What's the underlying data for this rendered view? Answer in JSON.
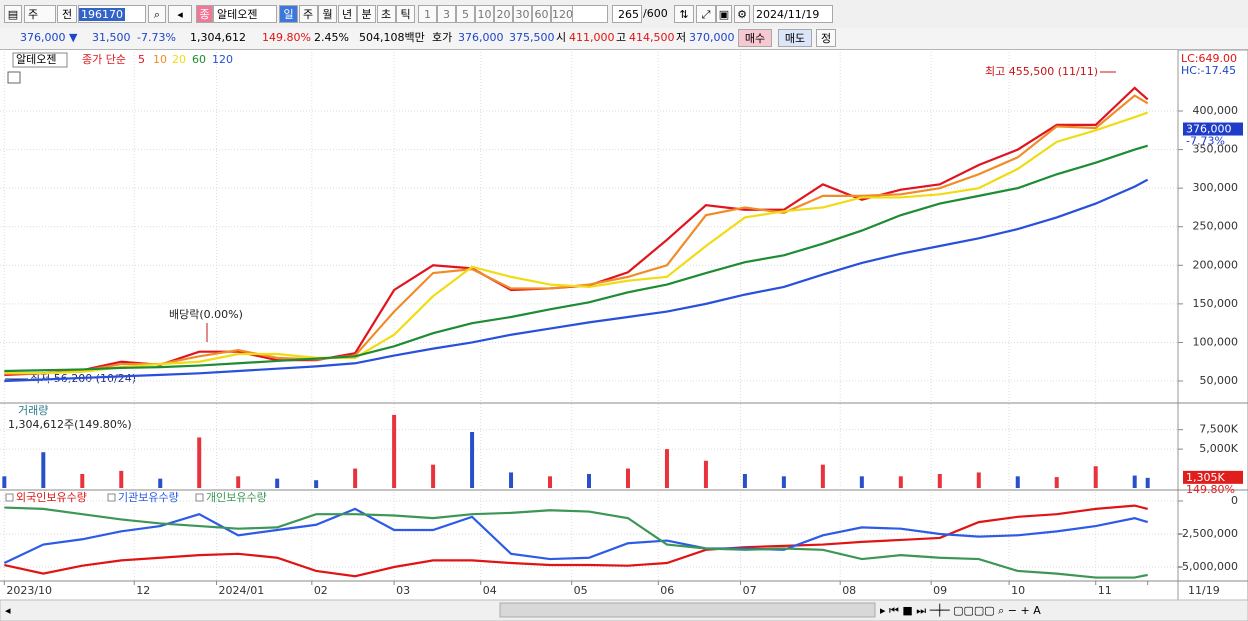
{
  "toolbar": {
    "market": "주",
    "range": "전",
    "code": "196170",
    "badge": "종",
    "name": "알테오젠",
    "periods": [
      "일",
      "주",
      "월",
      "년",
      "분",
      "초",
      "틱"
    ],
    "intervals": [
      "1",
      "3",
      "5",
      "10",
      "20",
      "30",
      "60",
      "120"
    ],
    "count": "265",
    "max": "/600",
    "date": "2024/11/19"
  },
  "quote": {
    "price": "376,000 ▼",
    "change": "31,500",
    "pct": "-7.73%",
    "volume": "1,304,612",
    "vol_ratio": "149.80%",
    "turnover": "2.45%",
    "amount": "504,108백만",
    "hoga_label": "호가",
    "ask": "376,000",
    "bid": "375,500",
    "open_label": "시",
    "open": "411,000",
    "high_label": "고",
    "high": "414,500",
    "low_label": "저",
    "low": "370,000",
    "buy": "매수",
    "sell": "매도",
    "flat": "정"
  },
  "chart_data": {
    "type": "stock",
    "x": [
      0,
      9,
      18,
      27,
      36,
      45,
      54,
      63,
      72,
      81,
      90,
      99,
      108,
      117,
      126,
      135,
      144,
      153,
      162,
      171,
      180,
      189,
      198,
      207,
      216,
      225,
      234,
      243,
      252,
      261,
      264
    ],
    "xlim": [
      -1,
      271
    ],
    "xticks": [
      {
        "value": 0,
        "label": "2023/10"
      },
      {
        "value": 30,
        "label": "12"
      },
      {
        "value": 49,
        "label": "2024/01"
      },
      {
        "value": 71,
        "label": "02"
      },
      {
        "value": 90,
        "label": "03"
      },
      {
        "value": 110,
        "label": "04"
      },
      {
        "value": 131,
        "label": "05"
      },
      {
        "value": 151,
        "label": "06"
      },
      {
        "value": 170,
        "label": "07"
      },
      {
        "value": 193,
        "label": "08"
      },
      {
        "value": 214,
        "label": "09"
      },
      {
        "value": 232,
        "label": "10"
      },
      {
        "value": 252,
        "label": "11"
      },
      {
        "value": 264,
        "label": "11/19"
      }
    ],
    "grid": true,
    "panels": [
      {
        "type": "line",
        "title": "알테오젠",
        "legend_prefix": "종가 단순",
        "lc": "LC:649.00",
        "hc": "HC:-17.45",
        "ylim": [
          22800,
          476500
        ],
        "yticks": [
          {
            "value": 50000,
            "label": "50,000"
          },
          {
            "value": 100000,
            "label": "100,000"
          },
          {
            "value": 150000,
            "label": "150,000"
          },
          {
            "value": 200000,
            "label": "200,000"
          },
          {
            "value": 250000,
            "label": "250,000"
          },
          {
            "value": 300000,
            "label": "300,000"
          },
          {
            "value": 350000,
            "label": "350,000"
          },
          {
            "value": 400000,
            "label": "400,000"
          }
        ],
        "last": {
          "value": 376000,
          "label": "376,000"
        },
        "last_change": "-7.73%",
        "annotations": {
          "high": "최고 455,500 (11/11)",
          "dividend": "배당락(0.00%)",
          "low": "최저 56,200 (10/24)"
        },
        "series": [
          {
            "name": "5",
            "color": "#e0141e",
            "values": [
              58000,
              60000,
              64000,
              75000,
              71000,
              88000,
              88000,
              77000,
              77000,
              86000,
              168000,
              200000,
              196000,
              168000,
              170000,
              174000,
              191000,
              233000,
              278000,
              272000,
              272000,
              305000,
              285000,
              298000,
              305000,
              330000,
              350000,
              382000,
              382000,
              430000,
              415000
            ]
          },
          {
            "name": "10",
            "color": "#f08c28",
            "values": [
              60000,
              60000,
              63000,
              72000,
              72000,
              82000,
              90000,
              80000,
              78000,
              83000,
              140000,
              190000,
              195000,
              170000,
              170000,
              175000,
              185000,
              200000,
              265000,
              275000,
              268000,
              290000,
              290000,
              292000,
              300000,
              318000,
              340000,
              380000,
              378000,
              420000,
              410000
            ]
          },
          {
            "name": "20",
            "color": "#f0dc14",
            "values": [
              60000,
              60000,
              62000,
              68000,
              72000,
              75000,
              85000,
              85000,
              80000,
              80000,
              110000,
              160000,
              198000,
              185000,
              175000,
              172000,
              180000,
              185000,
              225000,
              262000,
              270000,
              275000,
              288000,
              288000,
              292000,
              300000,
              325000,
              360000,
              375000,
              392000,
              398000
            ]
          },
          {
            "name": "60",
            "color": "#1e8c32",
            "values": [
              63000,
              64000,
              65000,
              67000,
              68000,
              70000,
              73000,
              76000,
              79000,
              82000,
              95000,
              112000,
              125000,
              133000,
              143000,
              152000,
              165000,
              175000,
              190000,
              204000,
              213000,
              228000,
              245000,
              265000,
              280000,
              290000,
              300000,
              318000,
              333000,
              350000,
              355000
            ]
          },
          {
            "name": "120",
            "color": "#2850dc",
            "values": [
              50000,
              52000,
              54000,
              56000,
              58000,
              60000,
              63000,
              66000,
              69000,
              73000,
              83000,
              92000,
              100000,
              110000,
              118000,
              126000,
              133000,
              140000,
              150000,
              162000,
              172000,
              188000,
              203000,
              215000,
              225000,
              235000,
              247000,
              262000,
              280000,
              302000,
              311000
            ]
          }
        ]
      },
      {
        "type": "bar",
        "title": "거래량",
        "subtitle": "1,304,612주(149.80%)",
        "ylim": [
          0,
          10800000
        ],
        "yticks": [
          {
            "value": 5000000,
            "label": "5,000K"
          },
          {
            "value": 7500000,
            "label": "7,500K"
          }
        ],
        "last": {
          "value": 1304612,
          "label": "1,305K"
        },
        "last_ratio": "149.80%",
        "values": [
          1500000,
          4600000,
          1800000,
          2200000,
          1200000,
          6500000,
          1500000,
          1200000,
          1000000,
          2500000,
          9400000,
          3000000,
          7200000,
          2000000,
          1500000,
          1800000,
          2500000,
          5000000,
          3500000,
          1800000,
          1500000,
          3000000,
          1500000,
          1500000,
          1800000,
          2000000,
          1500000,
          1400000,
          2800000,
          1600000,
          1304612
        ],
        "colors": [
          "#2850c8",
          "#2850c8",
          "#e8323c",
          "#e8323c",
          "#2850c8",
          "#e8323c",
          "#e8323c",
          "#2850c8",
          "#2850c8",
          "#e8323c",
          "#e8323c",
          "#e8323c",
          "#2850c8",
          "#2850c8",
          "#e8323c",
          "#2850c8",
          "#e8323c",
          "#e8323c",
          "#e8323c",
          "#2850c8",
          "#2850c8",
          "#e8323c",
          "#2850c8",
          "#e8323c",
          "#e8323c",
          "#e8323c",
          "#2850c8",
          "#e8323c",
          "#e8323c",
          "#2850c8",
          "#2850c8"
        ]
      },
      {
        "type": "line",
        "ylim": [
          -5985000,
          680000
        ],
        "yticks": [
          0,
          {
            "value": -2500000,
            "label": "-2,500,000"
          },
          {
            "value": -5000000,
            "label": "-5,000,000"
          }
        ],
        "series": [
          {
            "name": "외국인보유수량",
            "color": "#e01414",
            "values": [
              -4850000,
              -5500000,
              -4900000,
              -4500000,
              -4300000,
              -4100000,
              -4000000,
              -4300000,
              -5300000,
              -5700000,
              -5000000,
              -4500000,
              -4500000,
              -4700000,
              -4850000,
              -4850000,
              -4900000,
              -4700000,
              -3700000,
              -3500000,
              -3400000,
              -3300000,
              -3100000,
              -2950000,
              -2800000,
              -1600000,
              -1200000,
              -1000000,
              -600000,
              -350000,
              -600000
            ]
          },
          {
            "name": "기관보유수량",
            "color": "#2d5ae6",
            "values": [
              -4700000,
              -3300000,
              -2900000,
              -2300000,
              -1900000,
              -1000000,
              -2600000,
              -2200000,
              -1800000,
              -600000,
              -2200000,
              -2200000,
              -1200000,
              -4000000,
              -4400000,
              -4300000,
              -3200000,
              -3000000,
              -3600000,
              -3600000,
              -3700000,
              -2600000,
              -2000000,
              -2100000,
              -2500000,
              -2700000,
              -2600000,
              -2300000,
              -1900000,
              -1300000,
              -1600000
            ]
          },
          {
            "name": "개인보유수량",
            "color": "#3c9655",
            "values": [
              -500000,
              -600000,
              -1000000,
              -1400000,
              -1700000,
              -1900000,
              -2100000,
              -2000000,
              -1000000,
              -1000000,
              -1100000,
              -1300000,
              -1000000,
              -900000,
              -700000,
              -800000,
              -1300000,
              -3300000,
              -3600000,
              -3700000,
              -3600000,
              -3700000,
              -4400000,
              -4100000,
              -4300000,
              -4400000,
              -5300000,
              -5500000,
              -5800000,
              -5800000,
              -5600000
            ]
          }
        ]
      }
    ]
  }
}
